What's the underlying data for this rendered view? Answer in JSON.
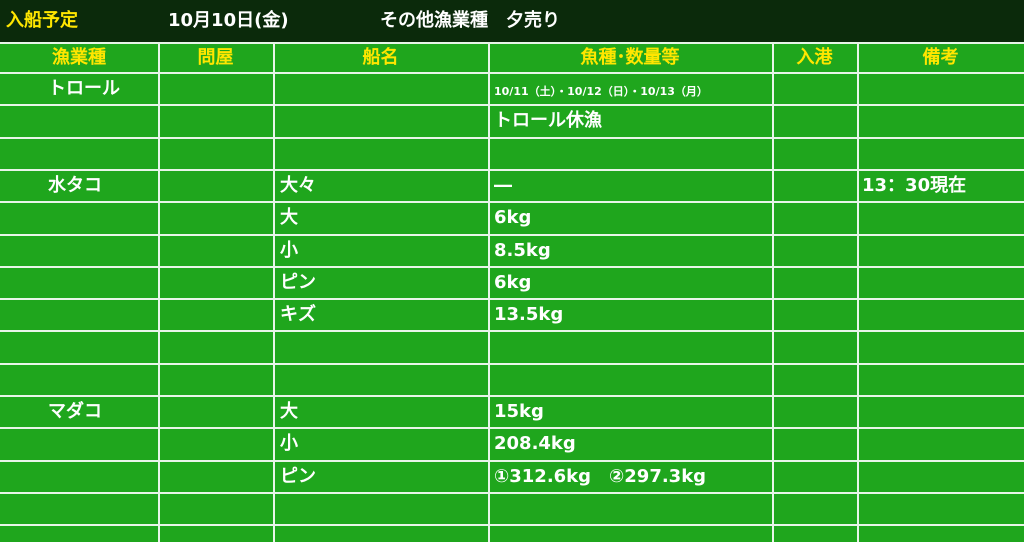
{
  "header": {
    "label": "入船予定",
    "date": "10月10日(金)",
    "session": "その他漁業種　夕売り"
  },
  "table": {
    "columns": [
      "漁業種",
      "問屋",
      "船名",
      "魚種･数量等",
      "入港",
      "備考"
    ],
    "rows": [
      {
        "category": "トロール",
        "quantity": "10/11（土）・10/12（日）・10/13（月）"
      },
      {
        "quantity": "トロール休漁"
      },
      {},
      {
        "category": "水タコ",
        "size": "大々",
        "quantity": "―",
        "note": "13：30現在"
      },
      {
        "size": "大",
        "quantity": "6kg"
      },
      {
        "size": "小",
        "quantity": "8.5kg"
      },
      {
        "size": "ピン",
        "quantity": "6kg"
      },
      {
        "size": "キズ",
        "quantity": "13.5kg"
      },
      {},
      {},
      {
        "category": "マダコ",
        "size": "大",
        "quantity": "15kg"
      },
      {
        "size": "小",
        "quantity": "208.4kg"
      },
      {
        "size": "ピン",
        "quantity": "①312.6kg　②297.3kg"
      },
      {}
    ]
  }
}
